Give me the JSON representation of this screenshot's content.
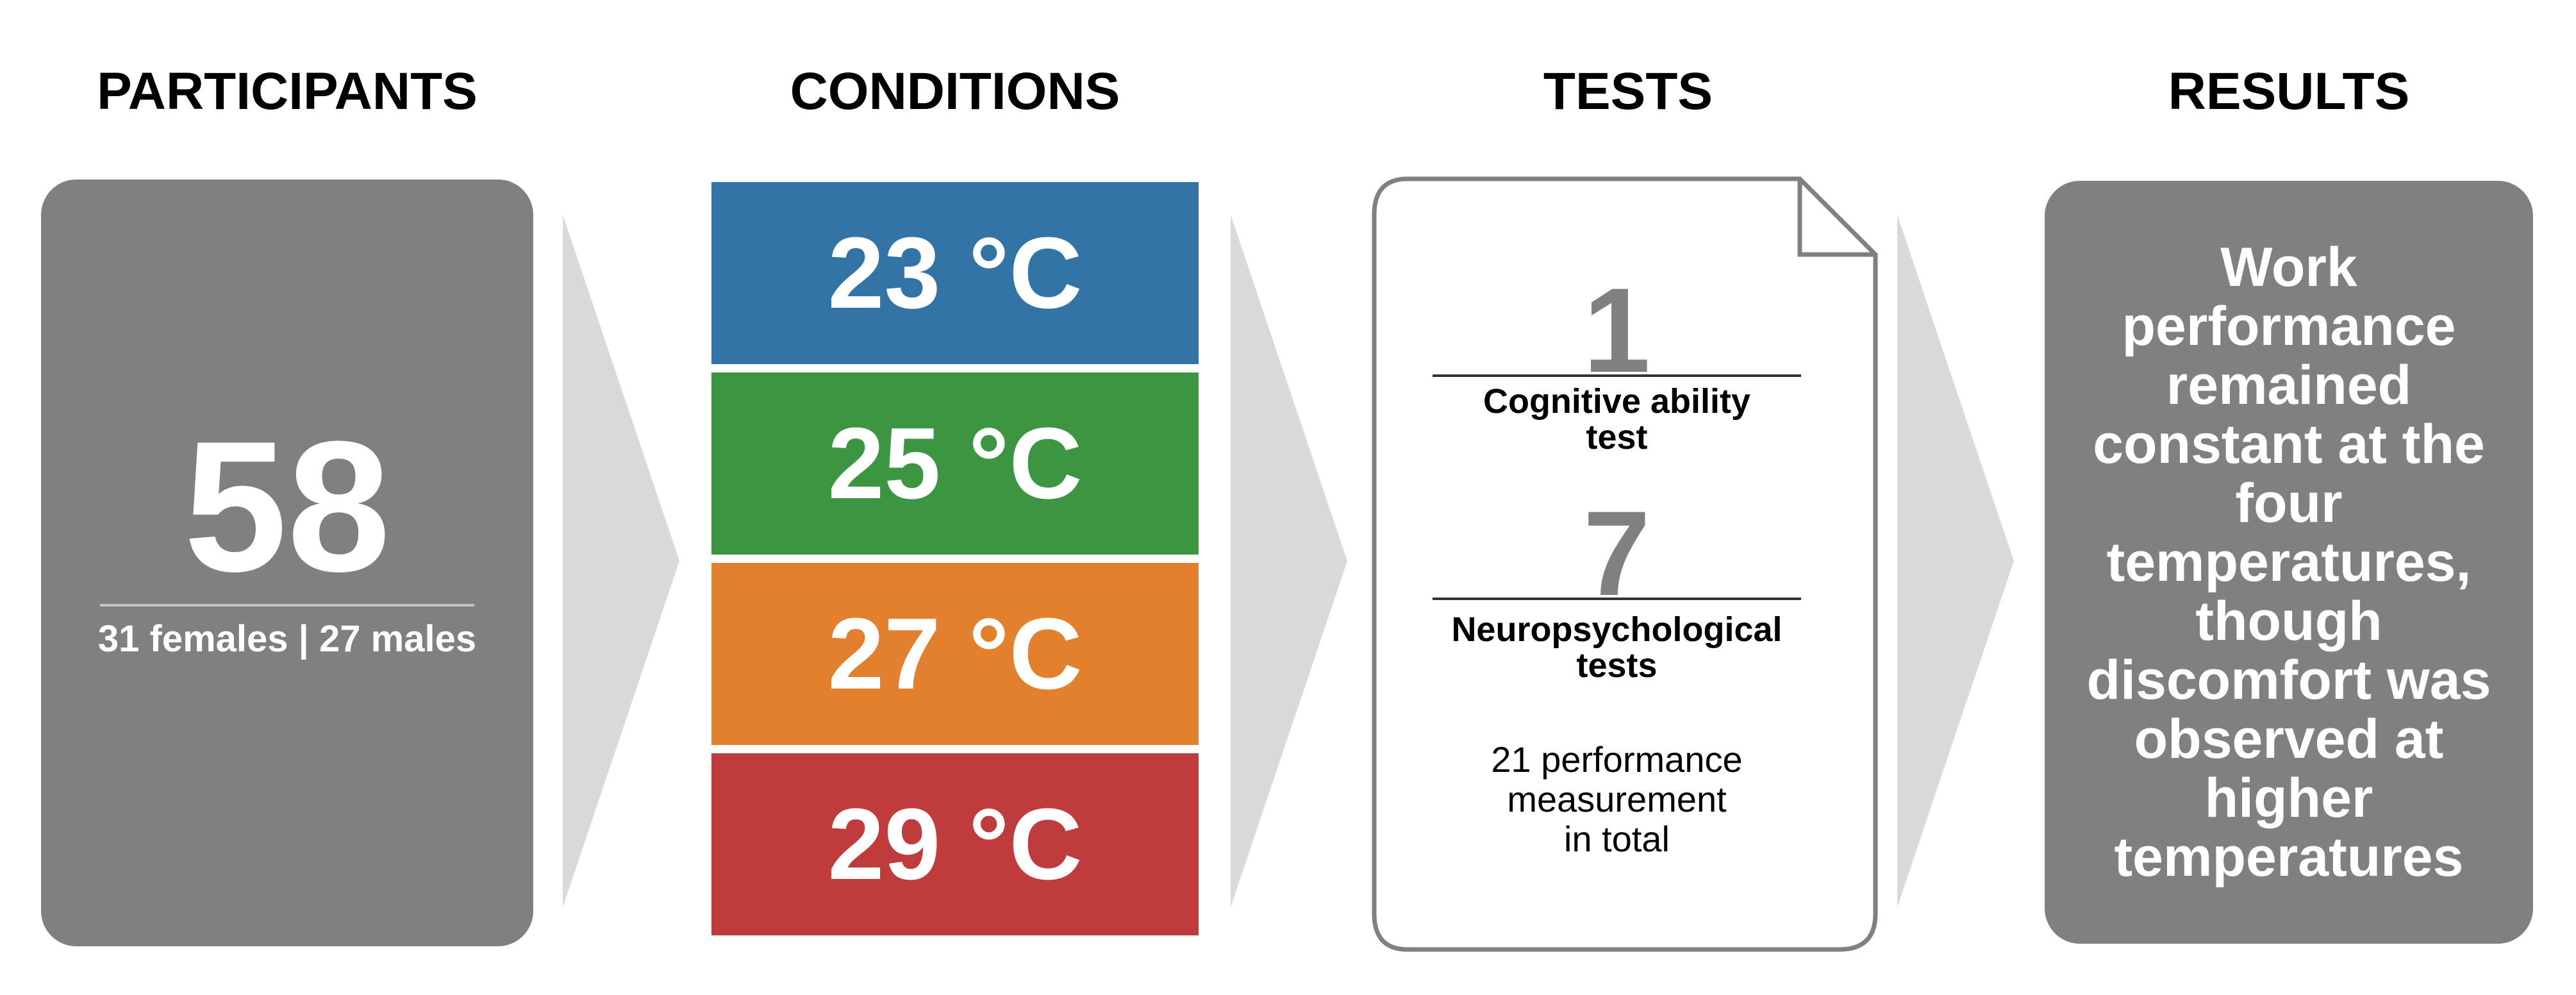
{
  "headings": {
    "participants": "PARTICIPANTS",
    "conditions": "CONDITIONS",
    "tests": "TESTS",
    "results": "RESULTS"
  },
  "participants": {
    "count": "58",
    "breakdown": "31 females | 27 males"
  },
  "conditions": [
    {
      "label": "23 °C",
      "color": "#3374a6"
    },
    {
      "label": "25 °C",
      "color": "#3c9540"
    },
    {
      "label": "27 °C",
      "color": "#e2802e"
    },
    {
      "label": "29 °C",
      "color": "#bf3b3c"
    }
  ],
  "tests": {
    "cognitive_count": "1",
    "cognitive_label_1": "Cognitive ability",
    "cognitive_label_2": "test",
    "neuro_count": "7",
    "neuro_label_1": "Neuropsychological",
    "neuro_label_2": "tests",
    "total_line_1": "21 performance",
    "total_line_2": "measurement",
    "total_line_3": "in total"
  },
  "results": {
    "text": "Work performance remained constant at the four temperatures, though discomfort was observed at higher temperatures"
  },
  "colors": {
    "box_gray": "#808080",
    "chevron_gray": "#d9d9d9"
  }
}
